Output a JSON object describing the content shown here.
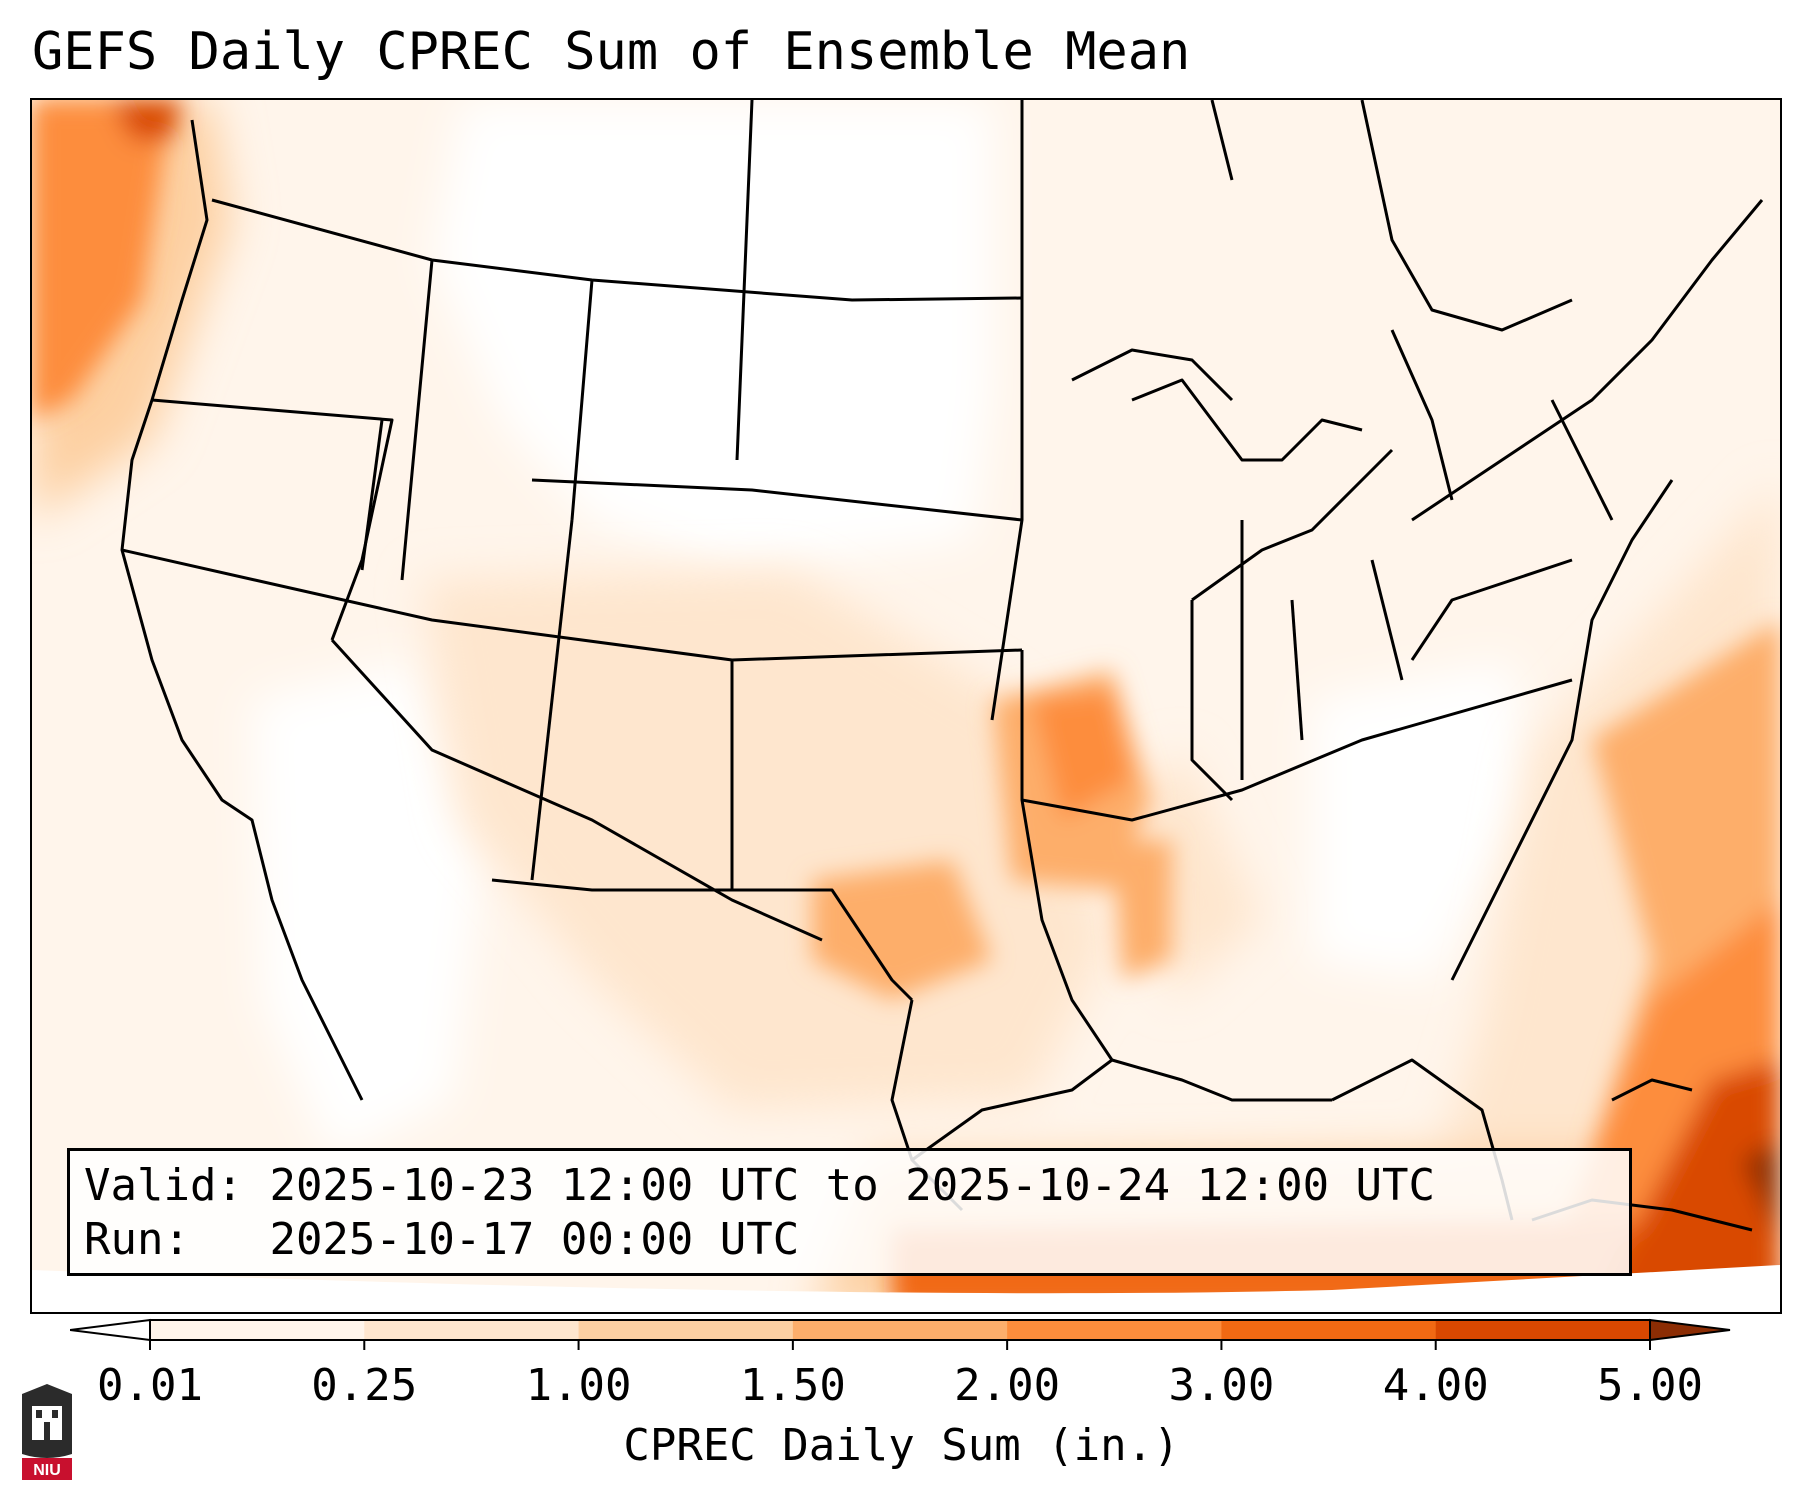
{
  "title": "GEFS Daily CPREC Sum of Ensemble Mean",
  "info": {
    "valid_label": "Valid:",
    "valid_value": "2025-10-23 12:00 UTC to 2025-10-24 12:00 UTC",
    "run_label": "Run:",
    "run_value": "2025-10-17 00:00 UTC"
  },
  "colorbar": {
    "label": "CPREC Daily Sum (in.)",
    "ticks": [
      "0.01",
      "0.25",
      "1.00",
      "1.50",
      "2.00",
      "3.00",
      "4.00",
      "5.00"
    ],
    "colors": [
      "#fff5eb",
      "#fee6ce",
      "#fdd0a2",
      "#fdae6b",
      "#fd8d3c",
      "#f16913",
      "#d94801",
      "#8c2d04"
    ],
    "extend": "both"
  },
  "logo": {
    "text": "NIU"
  }
}
